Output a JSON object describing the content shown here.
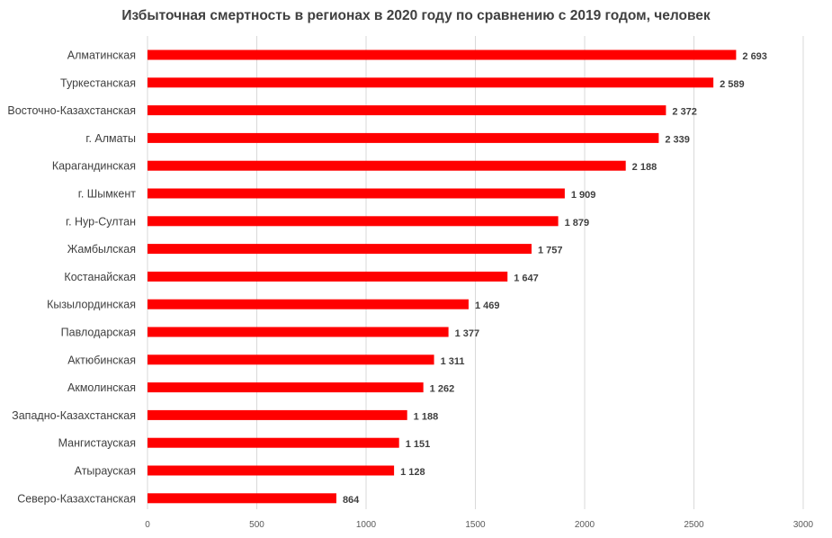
{
  "chart_data": {
    "type": "bar",
    "orientation": "horizontal",
    "title": "Избыточная смертность в регионах в 2020 году по сравнению с 2019 годом, человек",
    "categories": [
      "Алматинская",
      "Туркестанская",
      "Восточно-Казахстанская",
      "г. Алматы",
      "Карагандинская",
      "г. Шымкент",
      "г. Нур-Султан",
      "Жамбылская",
      "Костанайская",
      "Кызылординская",
      "Павлодарская",
      "Актюбинская",
      "Акмолинская",
      "Западно-Казахстанская",
      "Мангистауская",
      "Атырауская",
      "Северо-Казахстанская"
    ],
    "values": [
      2693,
      2589,
      2372,
      2339,
      2188,
      1909,
      1879,
      1757,
      1647,
      1469,
      1377,
      1311,
      1262,
      1188,
      1151,
      1128,
      864
    ],
    "value_labels": [
      "2 693",
      "2 589",
      "2 372",
      "2 339",
      "2 188",
      "1 909",
      "1 879",
      "1 757",
      "1 647",
      "1 469",
      "1 377",
      "1 311",
      "1 262",
      "1 188",
      "1 151",
      "1 128",
      "864"
    ],
    "xlim": [
      0,
      3000
    ],
    "x_ticks": [
      0,
      500,
      1000,
      1500,
      2000,
      2500,
      3000
    ],
    "x_tick_labels": [
      "0",
      "500",
      "1000",
      "1500",
      "2000",
      "2500",
      "3000"
    ],
    "bar_color": "#ff0000",
    "grid": true,
    "legend": false
  }
}
